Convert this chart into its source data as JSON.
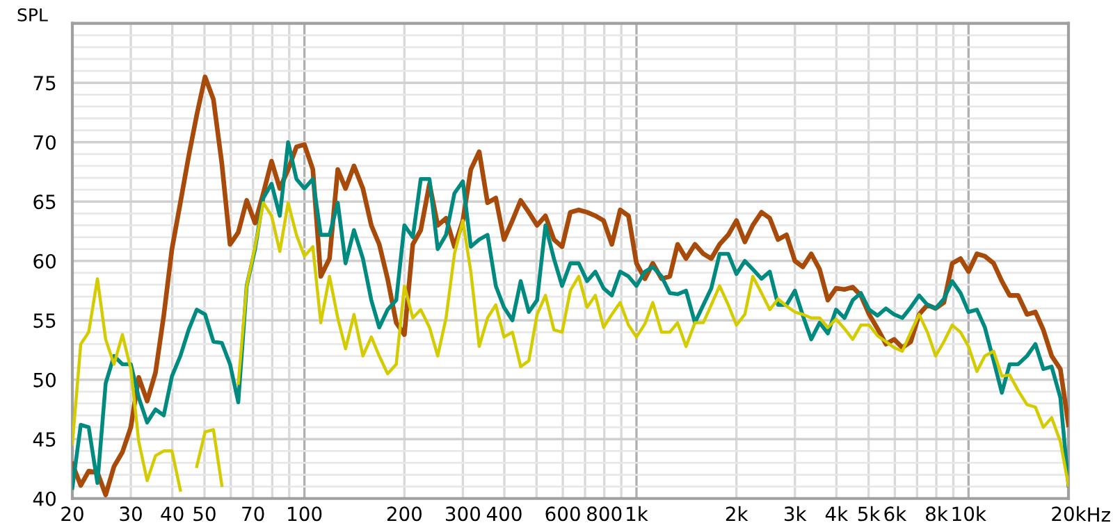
{
  "chart_data": {
    "type": "line",
    "ylabel": "SPL",
    "xlabel": "Hz",
    "log": "x",
    "grid": true,
    "marker": "none",
    "line_style": "solid",
    "xlim": [
      20,
      20000
    ],
    "ylim": [
      40,
      80
    ],
    "xticks": [
      20,
      30,
      40,
      50,
      {
        "value": 60,
        "label": null
      },
      70,
      {
        "value": 80,
        "label": null
      },
      {
        "value": 90,
        "label": null
      },
      100,
      200,
      300,
      400,
      {
        "value": 500,
        "label": null
      },
      600,
      {
        "value": 700,
        "label": null
      },
      800,
      {
        "value": 900,
        "label": null
      },
      {
        "value": 1000,
        "label": "1k"
      },
      {
        "value": 2000,
        "label": "2k"
      },
      {
        "value": 3000,
        "label": "3k"
      },
      {
        "value": 4000,
        "label": "4k"
      },
      {
        "value": 5000,
        "label": "5k"
      },
      {
        "value": 6000,
        "label": "6k"
      },
      {
        "value": 7000,
        "label": null
      },
      {
        "value": 8000,
        "label": "8k"
      },
      {
        "value": 9000,
        "label": null
      },
      {
        "value": 10000,
        "label": "10k"
      },
      {
        "value": 20000,
        "label": "20k"
      }
    ],
    "yticks": [
      40,
      {
        "value": 41,
        "label": null
      },
      {
        "value": 42,
        "label": null
      },
      {
        "value": 43,
        "label": null
      },
      {
        "value": 44,
        "label": null
      },
      45,
      {
        "value": 46,
        "label": null
      },
      {
        "value": 47,
        "label": null
      },
      {
        "value": 48,
        "label": null
      },
      {
        "value": 49,
        "label": null
      },
      50,
      {
        "value": 51,
        "label": null
      },
      {
        "value": 52,
        "label": null
      },
      {
        "value": 53,
        "label": null
      },
      {
        "value": 54,
        "label": null
      },
      55,
      {
        "value": 56,
        "label": null
      },
      {
        "value": 57,
        "label": null
      },
      {
        "value": 58,
        "label": null
      },
      {
        "value": 59,
        "label": null
      },
      60,
      {
        "value": 61,
        "label": null
      },
      {
        "value": 62,
        "label": null
      },
      {
        "value": 63,
        "label": null
      },
      {
        "value": 64,
        "label": null
      },
      65,
      {
        "value": 66,
        "label": null
      },
      {
        "value": 67,
        "label": null
      },
      {
        "value": 68,
        "label": null
      },
      {
        "value": 69,
        "label": null
      },
      70,
      {
        "value": 71,
        "label": null
      },
      {
        "value": 72,
        "label": null
      },
      {
        "value": 73,
        "label": null
      },
      {
        "value": 74,
        "label": null
      },
      75,
      {
        "value": 76,
        "label": null
      },
      {
        "value": 77,
        "label": null
      },
      {
        "value": 78,
        "label": null
      },
      {
        "value": 79,
        "label": null
      }
    ],
    "x": [
      20,
      21.2,
      22.4,
      23.8,
      25.2,
      26.7,
      28.3,
      30,
      31.7,
      33.6,
      35.6,
      37.7,
      39.9,
      42.3,
      44.8,
      47.4,
      50.2,
      53.2,
      56.4,
      59.7,
      63.2,
      67,
      71,
      75.2,
      79.6,
      84.3,
      89.3,
      94.6,
      100,
      106,
      112,
      119,
      126,
      133,
      141,
      150,
      159,
      168,
      178,
      189,
      200,
      212,
      224,
      238,
      252,
      267,
      283,
      300,
      317,
      336,
      356,
      377,
      399,
      423,
      448,
      474,
      502,
      532,
      564,
      597,
      632,
      670,
      710,
      752,
      796,
      843,
      893,
      946,
      1000,
      1060,
      1120,
      1190,
      1260,
      1330,
      1410,
      1500,
      1590,
      1680,
      1780,
      1890,
      2000,
      2120,
      2240,
      2380,
      2520,
      2670,
      2830,
      3000,
      3170,
      3360,
      3560,
      3770,
      3990,
      4230,
      4480,
      4740,
      5020,
      5320,
      5640,
      5970,
      6320,
      6700,
      7100,
      7520,
      7960,
      8430,
      8930,
      9460,
      10000,
      10600,
      11200,
      11900,
      12600,
      13300,
      14100,
      15000,
      15900,
      16800,
      17800,
      18900,
      20000
    ],
    "series": [
      {
        "color": "#a84a0a",
        "values": [
          42.9,
          41.1,
          42.3,
          42.2,
          40.3,
          42.7,
          43.9,
          46.0,
          50.2,
          48.2,
          50.6,
          55.4,
          61.0,
          64.9,
          68.8,
          72.3,
          75.5,
          73.6,
          68.2,
          61.4,
          62.4,
          65.1,
          63.2,
          65.7,
          68.4,
          66.1,
          67.7,
          69.6,
          69.8,
          67.7,
          58.7,
          60.2,
          67.7,
          66.1,
          68.0,
          66.1,
          63.0,
          61.4,
          58.5,
          54.8,
          53.8,
          61.4,
          62.6,
          66.5,
          63.0,
          63.6,
          61.2,
          63.4,
          67.7,
          69.2,
          64.9,
          65.3,
          61.8,
          63.4,
          65.1,
          64.1,
          63.0,
          63.8,
          61.8,
          61.2,
          64.1,
          64.3,
          64.1,
          63.8,
          63.4,
          61.4,
          64.3,
          63.8,
          59.8,
          58.5,
          59.8,
          58.5,
          58.7,
          61.4,
          60.2,
          61.4,
          60.6,
          60.2,
          61.4,
          62.2,
          63.4,
          61.6,
          63.0,
          64.1,
          63.6,
          61.8,
          62.2,
          60.0,
          59.5,
          60.6,
          59.3,
          56.7,
          57.7,
          57.6,
          57.8,
          57.1,
          55.5,
          54.3,
          53.0,
          53.4,
          52.7,
          53.2,
          55.5,
          56.3,
          56.0,
          56.5,
          59.8,
          60.2,
          59.1,
          60.6,
          60.4,
          59.8,
          58.3,
          57.1,
          57.1,
          55.5,
          55.7,
          54.2,
          52.0,
          50.9,
          46.2
        ]
      },
      {
        "color": "#008a80",
        "values": [
          40.9,
          46.2,
          46.0,
          41.3,
          49.7,
          52.0,
          51.3,
          51.3,
          48.5,
          46.4,
          47.5,
          47.0,
          50.3,
          52.0,
          54.2,
          55.9,
          55.5,
          53.2,
          53.1,
          51.3,
          48.1,
          57.9,
          61.0,
          65.3,
          66.5,
          63.8,
          70.0,
          66.9,
          66.1,
          66.9,
          62.2,
          62.2,
          64.9,
          59.8,
          62.6,
          60.2,
          56.7,
          54.4,
          55.9,
          56.7,
          63.0,
          62.0,
          66.9,
          66.9,
          61.0,
          62.2,
          65.7,
          66.7,
          61.2,
          61.8,
          62.2,
          57.9,
          56.1,
          55.0,
          58.3,
          55.7,
          56.7,
          63.0,
          60.2,
          57.9,
          59.8,
          59.8,
          58.3,
          59.1,
          57.7,
          57.1,
          59.1,
          58.7,
          57.9,
          59.1,
          59.5,
          58.7,
          57.3,
          57.2,
          57.5,
          54.8,
          56.3,
          57.7,
          60.6,
          60.6,
          58.9,
          60.0,
          59.3,
          58.5,
          59.1,
          56.3,
          56.3,
          57.5,
          55.4,
          53.4,
          54.8,
          53.9,
          55.9,
          55.2,
          56.7,
          57.3,
          55.9,
          55.4,
          56.0,
          55.5,
          55.2,
          56.1,
          57.1,
          56.3,
          56.0,
          56.8,
          58.3,
          57.3,
          55.7,
          55.9,
          54.4,
          51.6,
          48.9,
          51.3,
          51.3,
          52.0,
          53.0,
          50.9,
          51.1,
          48.5,
          41.1
        ]
      },
      {
        "color": "#d4cc00",
        "values": [
          44.6,
          53.0,
          54.0,
          58.5,
          53.4,
          51.3,
          53.8,
          50.9,
          44.8,
          41.5,
          43.6,
          44.0,
          44.0,
          40.7,
          null,
          42.7,
          45.6,
          45.8,
          41.1,
          null,
          49.7,
          57.9,
          61.2,
          64.9,
          63.8,
          60.8,
          64.9,
          62.2,
          60.4,
          61.2,
          54.8,
          58.7,
          55.2,
          52.6,
          55.5,
          52.0,
          53.6,
          52.0,
          50.5,
          51.3,
          57.9,
          55.2,
          55.9,
          54.4,
          52.0,
          55.2,
          60.6,
          63.4,
          59.1,
          52.8,
          55.2,
          56.3,
          53.6,
          54.0,
          51.1,
          51.6,
          55.5,
          57.1,
          54.2,
          54.0,
          57.5,
          58.7,
          56.1,
          57.1,
          54.4,
          55.5,
          56.5,
          54.6,
          53.6,
          54.7,
          56.5,
          54.0,
          54.0,
          54.8,
          52.8,
          54.8,
          54.8,
          56.3,
          57.9,
          56.3,
          54.6,
          55.5,
          58.7,
          57.3,
          55.9,
          56.8,
          56.2,
          55.7,
          55.5,
          55.2,
          55.2,
          54.4,
          55.1,
          54.3,
          53.4,
          54.6,
          54.6,
          53.7,
          53.2,
          52.7,
          52.4,
          54.0,
          55.5,
          54.0,
          52.0,
          53.2,
          54.6,
          54.0,
          52.8,
          50.7,
          52.0,
          52.4,
          50.3,
          50.4,
          49.1,
          47.9,
          47.7,
          46.0,
          46.8,
          44.8,
          41.1
        ]
      }
    ]
  }
}
